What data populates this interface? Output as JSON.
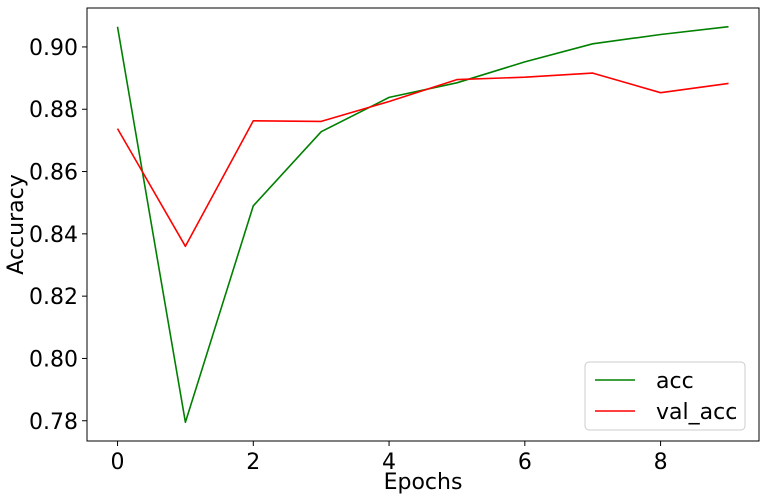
{
  "chart_data": {
    "type": "line",
    "title": "",
    "xlabel": "Epochs",
    "ylabel": "Accuracy",
    "xlim": [
      -0.45,
      9.45
    ],
    "ylim": [
      0.7735,
      0.9125
    ],
    "xticks": [
      0,
      2,
      4,
      6,
      8
    ],
    "xtick_labels": [
      "0",
      "2",
      "4",
      "6",
      "8"
    ],
    "yticks": [
      0.78,
      0.8,
      0.82,
      0.84,
      0.86,
      0.88,
      0.9
    ],
    "ytick_labels": [
      "0.78",
      "0.80",
      "0.82",
      "0.84",
      "0.86",
      "0.88",
      "0.90"
    ],
    "x": [
      0,
      1,
      2,
      3,
      4,
      5,
      6,
      7,
      8,
      9
    ],
    "series": [
      {
        "name": "acc",
        "color": "#008000",
        "values": [
          0.9065,
          0.7795,
          0.849,
          0.8728,
          0.8838,
          0.8885,
          0.8952,
          0.901,
          0.904,
          0.9065
        ]
      },
      {
        "name": "val_acc",
        "color": "#ff0000",
        "values": [
          0.8738,
          0.836,
          0.8763,
          0.8761,
          0.8825,
          0.8895,
          0.8903,
          0.8916,
          0.8853,
          0.8883
        ]
      }
    ],
    "grid": false,
    "legend_position": "lower-right"
  }
}
